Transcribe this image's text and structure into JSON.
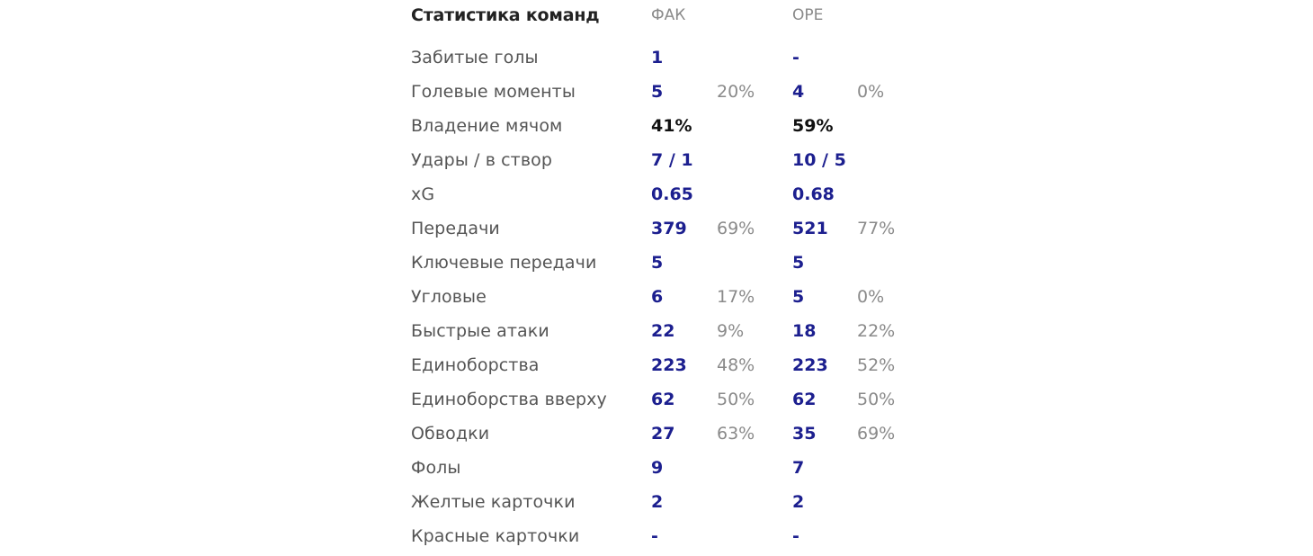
{
  "header": {
    "title": "Статистика команд",
    "home_team": "ФАК",
    "away_team": "ОРЕ"
  },
  "rows": [
    {
      "label": "Забитые голы",
      "home": "1",
      "home_pct": "",
      "away": "-",
      "away_pct": ""
    },
    {
      "label": "Голевые моменты",
      "home": "5",
      "home_pct": "20%",
      "away": "4",
      "away_pct": "0%"
    },
    {
      "label": "Владение мячом",
      "home": "41%",
      "home_pct": "",
      "away": "59%",
      "away_pct": ""
    },
    {
      "label": "Удары / в створ",
      "home": "7 / 1",
      "home_pct": "",
      "away": "10 / 5",
      "away_pct": ""
    },
    {
      "label": "xG",
      "home": "0.65",
      "home_pct": "",
      "away": "0.68",
      "away_pct": ""
    },
    {
      "label": "Передачи",
      "home": "379",
      "home_pct": "69%",
      "away": "521",
      "away_pct": "77%"
    },
    {
      "label": "Ключевые передачи",
      "home": "5",
      "home_pct": "",
      "away": "5",
      "away_pct": ""
    },
    {
      "label": "Угловые",
      "home": "6",
      "home_pct": "17%",
      "away": "5",
      "away_pct": "0%"
    },
    {
      "label": "Быстрые атаки",
      "home": "22",
      "home_pct": "9%",
      "away": "18",
      "away_pct": "22%"
    },
    {
      "label": "Единоборства",
      "home": "223",
      "home_pct": "48%",
      "away": "223",
      "away_pct": "52%"
    },
    {
      "label": "Единоборства вверху",
      "home": "62",
      "home_pct": "50%",
      "away": "62",
      "away_pct": "50%"
    },
    {
      "label": "Обводки",
      "home": "27",
      "home_pct": "63%",
      "away": "35",
      "away_pct": "69%"
    },
    {
      "label": "Фолы",
      "home": "9",
      "home_pct": "",
      "away": "7",
      "away_pct": ""
    },
    {
      "label": "Желтые карточки",
      "home": "2",
      "home_pct": "",
      "away": "2",
      "away_pct": ""
    },
    {
      "label": "Красные карточки",
      "home": "-",
      "home_pct": "",
      "away": "-",
      "away_pct": ""
    }
  ],
  "colors": {
    "value_blue": "#1c1f8f",
    "value_dark": "#111111",
    "label_gray": "#555555",
    "pct_gray": "#8a8a8a"
  }
}
